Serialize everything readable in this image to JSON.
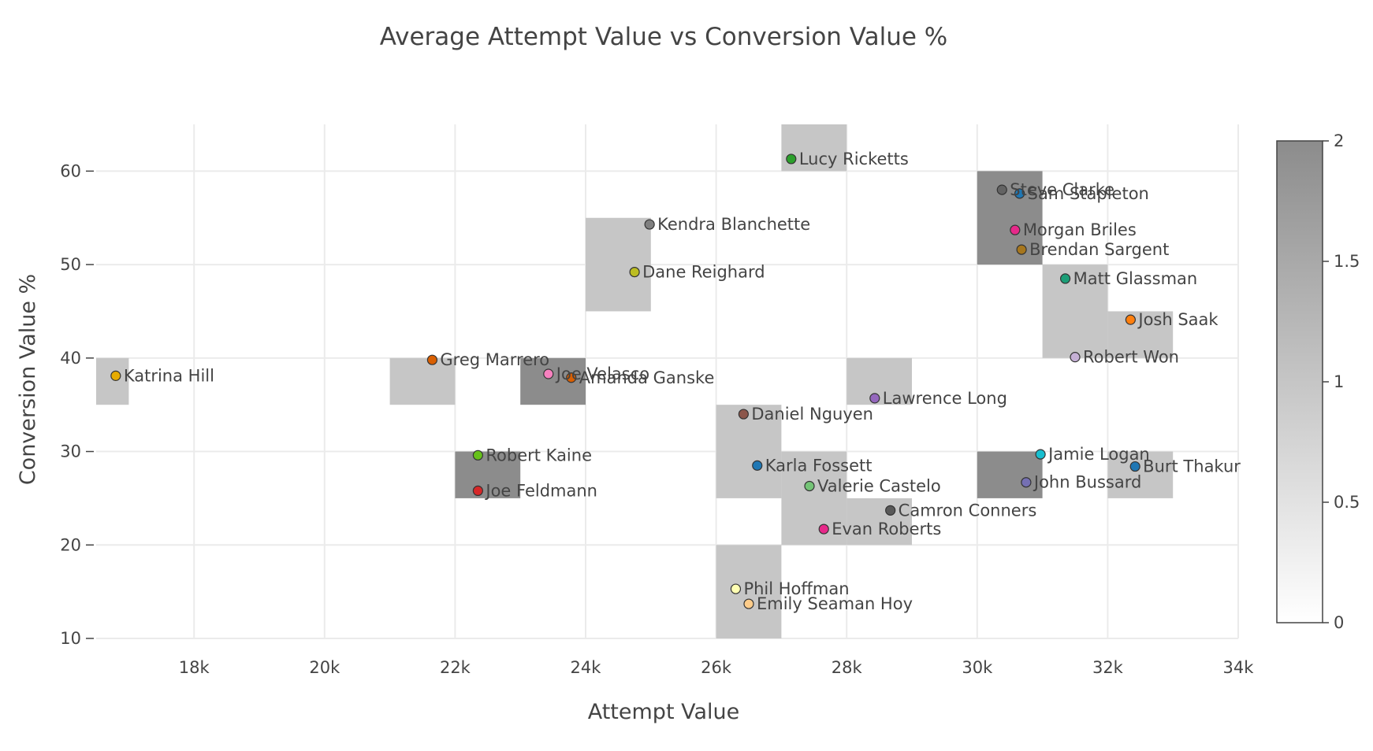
{
  "chart_data": {
    "type": "scatter",
    "title": "Average Attempt Value vs Conversion Value %",
    "xlabel": "Attempt Value",
    "ylabel": "Conversion Value %",
    "xlim": [
      16500,
      34000
    ],
    "ylim": [
      10,
      65
    ],
    "xticks": [
      {
        "value": 18000,
        "label": "18k"
      },
      {
        "value": 20000,
        "label": "20k"
      },
      {
        "value": 22000,
        "label": "22k"
      },
      {
        "value": 24000,
        "label": "24k"
      },
      {
        "value": 26000,
        "label": "26k"
      },
      {
        "value": 28000,
        "label": "28k"
      },
      {
        "value": 30000,
        "label": "30k"
      },
      {
        "value": 32000,
        "label": "32k"
      },
      {
        "value": 34000,
        "label": "34k"
      }
    ],
    "yticks": [
      {
        "value": 10,
        "label": "10"
      },
      {
        "value": 20,
        "label": "20"
      },
      {
        "value": 30,
        "label": "30"
      },
      {
        "value": 40,
        "label": "40"
      },
      {
        "value": 50,
        "label": "50"
      },
      {
        "value": 60,
        "label": "60"
      }
    ],
    "points": [
      {
        "name": "Lucy Ricketts",
        "x": 27150,
        "y": 61.3,
        "color": "#2ca02c"
      },
      {
        "name": "Steve Clarke",
        "x": 30380,
        "y": 58.0,
        "color": "#636363"
      },
      {
        "name": "Sam Stapleton",
        "x": 30650,
        "y": 57.6,
        "color": "#1f77b4"
      },
      {
        "name": "Kendra Blanchette",
        "x": 24980,
        "y": 54.3,
        "color": "#7f7f7f"
      },
      {
        "name": "Morgan Briles",
        "x": 30580,
        "y": 53.7,
        "color": "#e7298a"
      },
      {
        "name": "Brendan Sargent",
        "x": 30680,
        "y": 51.6,
        "color": "#a6761d"
      },
      {
        "name": "Dane Reighard",
        "x": 24750,
        "y": 49.2,
        "color": "#bcbd22"
      },
      {
        "name": "Matt Glassman",
        "x": 31350,
        "y": 48.5,
        "color": "#1b9e77"
      },
      {
        "name": "Josh Saak",
        "x": 32350,
        "y": 44.1,
        "color": "#ff7f0e"
      },
      {
        "name": "Robert Won",
        "x": 31500,
        "y": 40.1,
        "color": "#c5b0d5"
      },
      {
        "name": "Greg Marrero",
        "x": 21650,
        "y": 39.8,
        "color": "#d95f02"
      },
      {
        "name": "Katrina Hill",
        "x": 16800,
        "y": 38.1,
        "color": "#e6ab02"
      },
      {
        "name": "Joe Velasco",
        "x": 23430,
        "y": 38.3,
        "color": "#f781bf"
      },
      {
        "name": "Amanda Ganske",
        "x": 23780,
        "y": 37.9,
        "color": "#d95f02"
      },
      {
        "name": "Lawrence Long",
        "x": 28430,
        "y": 35.7,
        "color": "#9467bd"
      },
      {
        "name": "Daniel Nguyen",
        "x": 26420,
        "y": 34.0,
        "color": "#8c564b"
      },
      {
        "name": "Jamie Logan",
        "x": 30970,
        "y": 29.7,
        "color": "#17becf"
      },
      {
        "name": "Robert Kaine",
        "x": 22350,
        "y": 29.6,
        "color": "#66c11a"
      },
      {
        "name": "Burt Thakur",
        "x": 32420,
        "y": 28.4,
        "color": "#1f77b4"
      },
      {
        "name": "Karla Fossett",
        "x": 26630,
        "y": 28.5,
        "color": "#1f77b4"
      },
      {
        "name": "John Bussard",
        "x": 30750,
        "y": 26.7,
        "color": "#7570b3"
      },
      {
        "name": "Valerie Castelo",
        "x": 27430,
        "y": 26.3,
        "color": "#74c476"
      },
      {
        "name": "Joe Feldmann",
        "x": 22350,
        "y": 25.8,
        "color": "#d62728"
      },
      {
        "name": "Camron Conners",
        "x": 28670,
        "y": 23.7,
        "color": "#595959"
      },
      {
        "name": "Evan Roberts",
        "x": 27650,
        "y": 21.7,
        "color": "#e7298a"
      },
      {
        "name": "Phil Hoffman",
        "x": 26300,
        "y": 15.3,
        "color": "#ffffb3"
      },
      {
        "name": "Emily Seaman Hoy",
        "x": 26500,
        "y": 13.7,
        "color": "#fdcc8a"
      }
    ],
    "density_bins": [
      {
        "x0": 16500,
        "x1": 17000,
        "y0": 35,
        "y1": 40,
        "count": 1
      },
      {
        "x0": 21000,
        "x1": 22000,
        "y0": 35,
        "y1": 40,
        "count": 1
      },
      {
        "x0": 23000,
        "x1": 24000,
        "y0": 35,
        "y1": 40,
        "count": 2
      },
      {
        "x0": 22000,
        "x1": 23000,
        "y0": 25,
        "y1": 30,
        "count": 2
      },
      {
        "x0": 24000,
        "x1": 25000,
        "y0": 45,
        "y1": 55,
        "count": 1
      },
      {
        "x0": 27000,
        "x1": 28000,
        "y0": 60,
        "y1": 65,
        "count": 1
      },
      {
        "x0": 30000,
        "x1": 31000,
        "y0": 50,
        "y1": 60,
        "count": 2
      },
      {
        "x0": 31000,
        "x1": 32000,
        "y0": 40,
        "y1": 50,
        "count": 1
      },
      {
        "x0": 32000,
        "x1": 33000,
        "y0": 40,
        "y1": 45,
        "count": 1
      },
      {
        "x0": 28000,
        "x1": 29000,
        "y0": 35,
        "y1": 40,
        "count": 1
      },
      {
        "x0": 26000,
        "x1": 27000,
        "y0": 25,
        "y1": 35,
        "count": 1
      },
      {
        "x0": 27000,
        "x1": 28000,
        "y0": 20,
        "y1": 30,
        "count": 1
      },
      {
        "x0": 28000,
        "x1": 29000,
        "y0": 20,
        "y1": 25,
        "count": 1
      },
      {
        "x0": 30000,
        "x1": 31000,
        "y0": 25,
        "y1": 30,
        "count": 2
      },
      {
        "x0": 32000,
        "x1": 33000,
        "y0": 25,
        "y1": 30,
        "count": 1
      },
      {
        "x0": 26000,
        "x1": 27000,
        "y0": 10,
        "y1": 20,
        "count": 1
      }
    ],
    "colorbar": {
      "min": 0,
      "max": 2,
      "ticks": [
        {
          "value": 0,
          "label": "0"
        },
        {
          "value": 0.5,
          "label": "0.5"
        },
        {
          "value": 1,
          "label": "1"
        },
        {
          "value": 1.5,
          "label": "1.5"
        },
        {
          "value": 2,
          "label": "2"
        }
      ],
      "color_low": "#ffffff",
      "color_high": "#8c8c8c"
    },
    "grid": true,
    "legend": "none"
  }
}
